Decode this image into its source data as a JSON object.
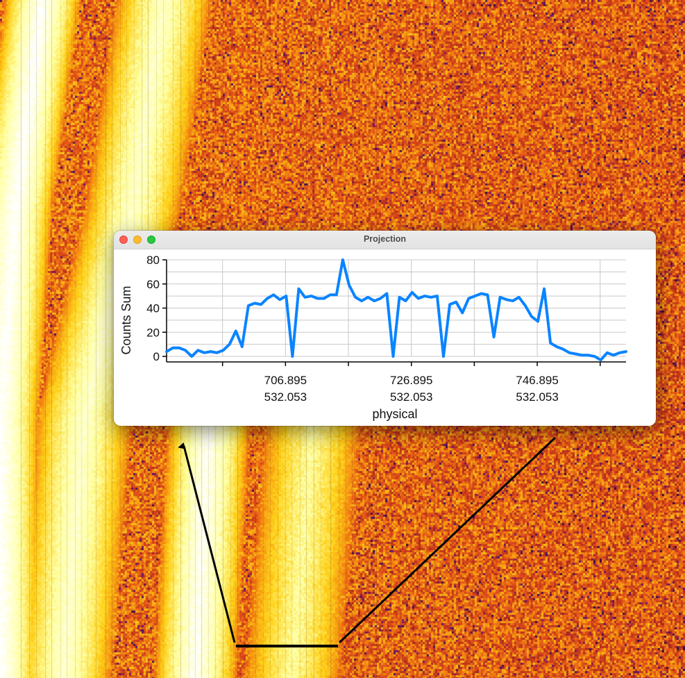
{
  "window": {
    "title": "Projection",
    "buttons": [
      "close",
      "minimize",
      "zoom"
    ]
  },
  "colors": {
    "line": "#0a84ff",
    "grid": "#c8c8c8",
    "region": "#000000",
    "heatmap": [
      "#2a0a3a",
      "#6a1870",
      "#b0281c",
      "#e2501a",
      "#f58c10",
      "#ffd21a",
      "#ffffa0",
      "#ffffff"
    ]
  },
  "background": {
    "type": "image-heatmap",
    "colormap": "hot-like (black-purple-red-orange-yellow-white)",
    "features": "diagonal saturated streaks on noisy orange/red background"
  },
  "chart_data": {
    "type": "line",
    "title": "",
    "xlabel": "physical",
    "ylabel": "Counts Sum",
    "ylim": [
      0,
      80
    ],
    "yticks": [
      0,
      20,
      40,
      60,
      80
    ],
    "grid": true,
    "xticks": [
      {
        "top": "706.895",
        "bottom": "532.053"
      },
      {
        "top": "726.895",
        "bottom": "532.053"
      },
      {
        "top": "746.895",
        "bottom": "532.053"
      }
    ],
    "x_tick_values": [
      706.895,
      726.895,
      746.895
    ],
    "x_range": [
      688,
      761
    ],
    "series": [
      {
        "color": "#0a84ff",
        "x": [
          688,
          689,
          690,
          691,
          692,
          693,
          694,
          695,
          696,
          697,
          698,
          699,
          700,
          701,
          702,
          703,
          704,
          705,
          706,
          707,
          708,
          709,
          710,
          711,
          712,
          713,
          714,
          715,
          716,
          717,
          718,
          719,
          720,
          721,
          722,
          723,
          724,
          725,
          726,
          727,
          728,
          729,
          730,
          731,
          732,
          733,
          734,
          735,
          736,
          737,
          738,
          739,
          740,
          741,
          742,
          743,
          744,
          745,
          746,
          747,
          748,
          749,
          750,
          751,
          752,
          753,
          754,
          755,
          756,
          757,
          758,
          759,
          760,
          761
        ],
        "values": [
          4,
          7,
          7,
          5,
          0,
          5,
          3,
          4,
          3,
          5,
          10,
          21,
          8,
          42,
          44,
          43,
          48,
          51,
          47,
          50,
          0,
          56,
          49,
          50,
          48,
          48,
          51,
          51,
          80,
          59,
          49,
          46,
          49,
          46,
          48,
          52,
          0,
          49,
          46,
          53,
          48,
          50,
          49,
          50,
          0,
          43,
          45,
          36,
          48,
          50,
          52,
          51,
          16,
          49,
          47,
          46,
          49,
          42,
          33,
          29,
          56,
          11,
          8,
          6,
          3,
          2,
          1,
          1,
          0,
          -3,
          3,
          1,
          3,
          4
        ]
      }
    ]
  },
  "region": {
    "shape": "projection",
    "width_handle": "arrow"
  }
}
